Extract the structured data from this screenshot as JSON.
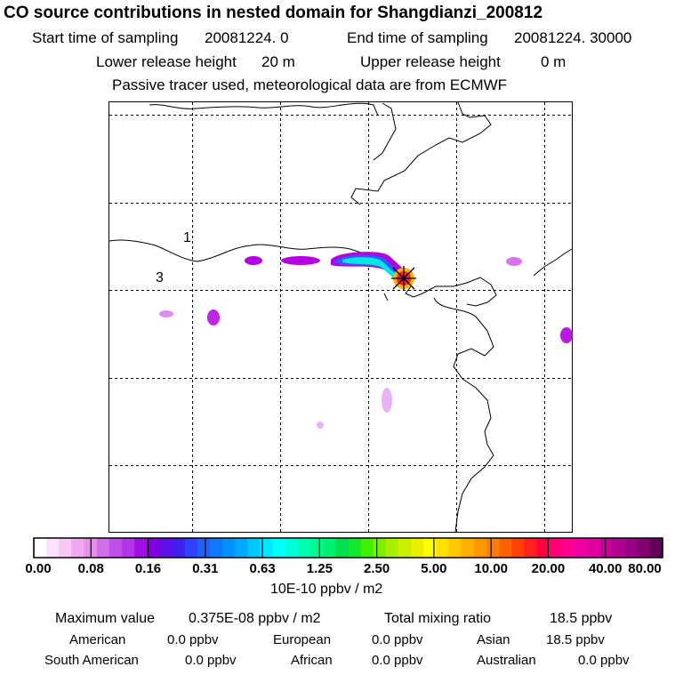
{
  "header": {
    "title": "CO  source contributions in nested domain for Shangdianzi_200812",
    "start_label": "Start time of sampling",
    "start_value": "20081224.     0",
    "end_label": "End time of sampling",
    "end_value": "20081224. 30000",
    "lower_label": "Lower release height",
    "lower_value": "20 m",
    "upper_label": "Upper release height",
    "upper_value": "0 m",
    "note": "Passive tracer used, meteorological data are from ECMWF"
  },
  "map": {
    "region_labels": [
      "1",
      "3"
    ],
    "colors": {
      "coast": "#000000",
      "grid": "#000000",
      "plume_low": "#b400e0",
      "plume_mid": "#2a5cff",
      "plume_high": "#00e6e0",
      "receptor": "#ff2020"
    }
  },
  "colorbar": {
    "ticks": [
      "0.00",
      "0.08",
      "0.16",
      "0.31",
      "0.63",
      "1.25",
      "2.50",
      "5.00",
      "10.00",
      "20.00",
      "40.00",
      "80.00"
    ],
    "unit": "10E-10 ppbv / m2",
    "colors": [
      "#ffffff",
      "#fde0fb",
      "#f8c8f5",
      "#f0a8ef",
      "#e890ea",
      "#d070e8",
      "#c04ee8",
      "#b035e6",
      "#a010e6",
      "#8000e0",
      "#6010e8",
      "#4020f0",
      "#3040ff",
      "#2060ff",
      "#1078ff",
      "#0090ff",
      "#00a8ff",
      "#00c8ff",
      "#00e8ff",
      "#00ffff",
      "#00ffd8",
      "#00ffb0",
      "#00f890",
      "#00f070",
      "#00e050",
      "#10e830",
      "#40f000",
      "#80f000",
      "#a8f000",
      "#c8f000",
      "#e8f000",
      "#ffff00",
      "#ffe000",
      "#ffc800",
      "#ffb000",
      "#ff9800",
      "#ff8000",
      "#ff6000",
      "#ff4000",
      "#ff2020",
      "#ff0040",
      "#ff0070",
      "#ff0090",
      "#f000a0",
      "#e000a0",
      "#c80098",
      "#b00090",
      "#980088",
      "#800070",
      "#600058"
    ]
  },
  "stats": {
    "max_label": "Maximum value",
    "max_value": "0.375E-08 ppbv / m2",
    "total_label": "Total mixing ratio",
    "total_value": "18.5 ppbv",
    "american_label": "American",
    "american_value": "0.0 ppbv",
    "european_label": "European",
    "european_value": "0.0 ppbv",
    "asian_label": "Asian",
    "asian_value": "18.5 ppbv",
    "south_american_label": "South American",
    "south_american_value": "0.0 ppbv",
    "african_label": "African",
    "african_value": "0.0 ppbv",
    "australian_label": "Australian",
    "australian_value": "0.0 ppbv"
  }
}
